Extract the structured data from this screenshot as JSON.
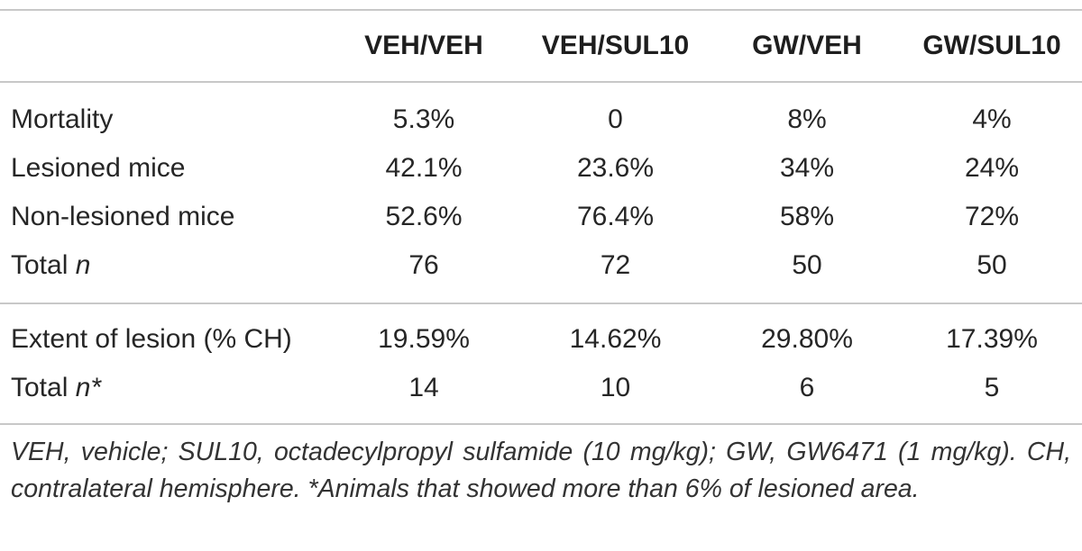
{
  "table": {
    "columns": [
      "VEH/VEH",
      "VEH/SUL10",
      "GW/VEH",
      "GW/SUL10"
    ],
    "rows_group1": [
      {
        "label": "Mortality",
        "label_suffix": "",
        "values": [
          "5.3%",
          "0",
          "8%",
          "4%"
        ]
      },
      {
        "label": "Lesioned mice",
        "label_suffix": "",
        "values": [
          "42.1%",
          "23.6%",
          "34%",
          "24%"
        ]
      },
      {
        "label": "Non-lesioned mice",
        "label_suffix": "",
        "values": [
          "52.6%",
          "76.4%",
          "58%",
          "72%"
        ]
      },
      {
        "label": "Total ",
        "label_suffix": "n",
        "values": [
          "76",
          "72",
          "50",
          "50"
        ]
      }
    ],
    "rows_group2": [
      {
        "label": "Extent of lesion (% CH)",
        "label_suffix": "",
        "values": [
          "19.59%",
          "14.62%",
          "29.80%",
          "17.39%"
        ]
      },
      {
        "label": "Total ",
        "label_suffix": "n*",
        "values": [
          "14",
          "10",
          "6",
          "5"
        ]
      }
    ],
    "footnote": "VEH, vehicle; SUL10, octadecylpropyl sulfamide (10 mg/kg); GW, GW6471 (1 mg/kg). CH, contralateral hemisphere. *Animals that showed more than 6% of lesioned area."
  }
}
